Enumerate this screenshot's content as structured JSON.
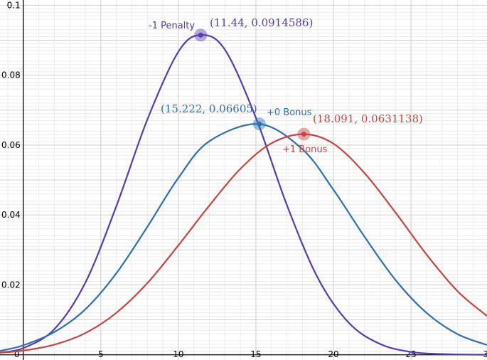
{
  "chart_data": {
    "type": "line",
    "title": "",
    "xlabel": "",
    "ylabel": "",
    "xlim": [
      -1.5,
      29.9
    ],
    "ylim": [
      -0.0015,
      0.1015
    ],
    "grid": true,
    "x_ticks": [
      {
        "value": 0,
        "label": "0"
      },
      {
        "value": 5,
        "label": "5"
      },
      {
        "value": 10,
        "label": "10"
      },
      {
        "value": 15,
        "label": "15"
      },
      {
        "value": 20,
        "label": "20"
      },
      {
        "value": 25,
        "label": "25"
      },
      {
        "value": 30,
        "label": "30"
      }
    ],
    "y_ticks": [
      {
        "value": 0.02,
        "label": "0.02"
      },
      {
        "value": 0.04,
        "label": "0.04"
      },
      {
        "value": 0.06,
        "label": "0.06"
      },
      {
        "value": 0.08,
        "label": "0.08"
      },
      {
        "value": 0.1,
        "label": "0.1"
      }
    ],
    "series": [
      {
        "name": "-1 Penalty",
        "color": "#5a3ab0",
        "peak": {
          "x": 11.44,
          "y": 0.0914586
        },
        "peak_label": "(11.44, 0.0914586)",
        "x": [
          -1.5,
          0,
          2,
          4,
          6,
          8,
          10,
          11.44,
          13,
          15,
          17,
          19,
          21,
          23,
          25,
          27,
          29.9
        ],
        "y": [
          0.0006,
          0.0019,
          0.0073,
          0.0206,
          0.0425,
          0.0673,
          0.0867,
          0.0915,
          0.0873,
          0.0678,
          0.0428,
          0.0219,
          0.0091,
          0.0031,
          0.0008,
          0.0002,
          0.0
        ]
      },
      {
        "name": "+0 Bonus",
        "color": "#2d70b3",
        "peak": {
          "x": 15.222,
          "y": 0.06605
        },
        "peak_label": "(15.222, 0.06605)",
        "x": [
          -1.5,
          0,
          2,
          4,
          6,
          8,
          10,
          12,
          15.222,
          18,
          20,
          22,
          24,
          26,
          28,
          29.9
        ],
        "y": [
          0.0011,
          0.0027,
          0.0065,
          0.013,
          0.0233,
          0.0366,
          0.0506,
          0.0611,
          0.066,
          0.0588,
          0.0472,
          0.0338,
          0.0214,
          0.012,
          0.0059,
          0.0028
        ]
      },
      {
        "name": "+1 Bonus",
        "color": "#c74440",
        "peak": {
          "x": 18.091,
          "y": 0.0631138
        },
        "peak_label": "(18.091, 0.0631138)",
        "x": [
          -1.5,
          0,
          2,
          4,
          6,
          8,
          10,
          12,
          14,
          16,
          18.091,
          20,
          22,
          24,
          26,
          28,
          29.9
        ],
        "y": [
          0.0006,
          0.0012,
          0.0029,
          0.0062,
          0.012,
          0.0205,
          0.0313,
          0.0427,
          0.0532,
          0.0605,
          0.0631,
          0.0604,
          0.052,
          0.0407,
          0.0287,
          0.0182,
          0.0111
        ]
      }
    ]
  }
}
